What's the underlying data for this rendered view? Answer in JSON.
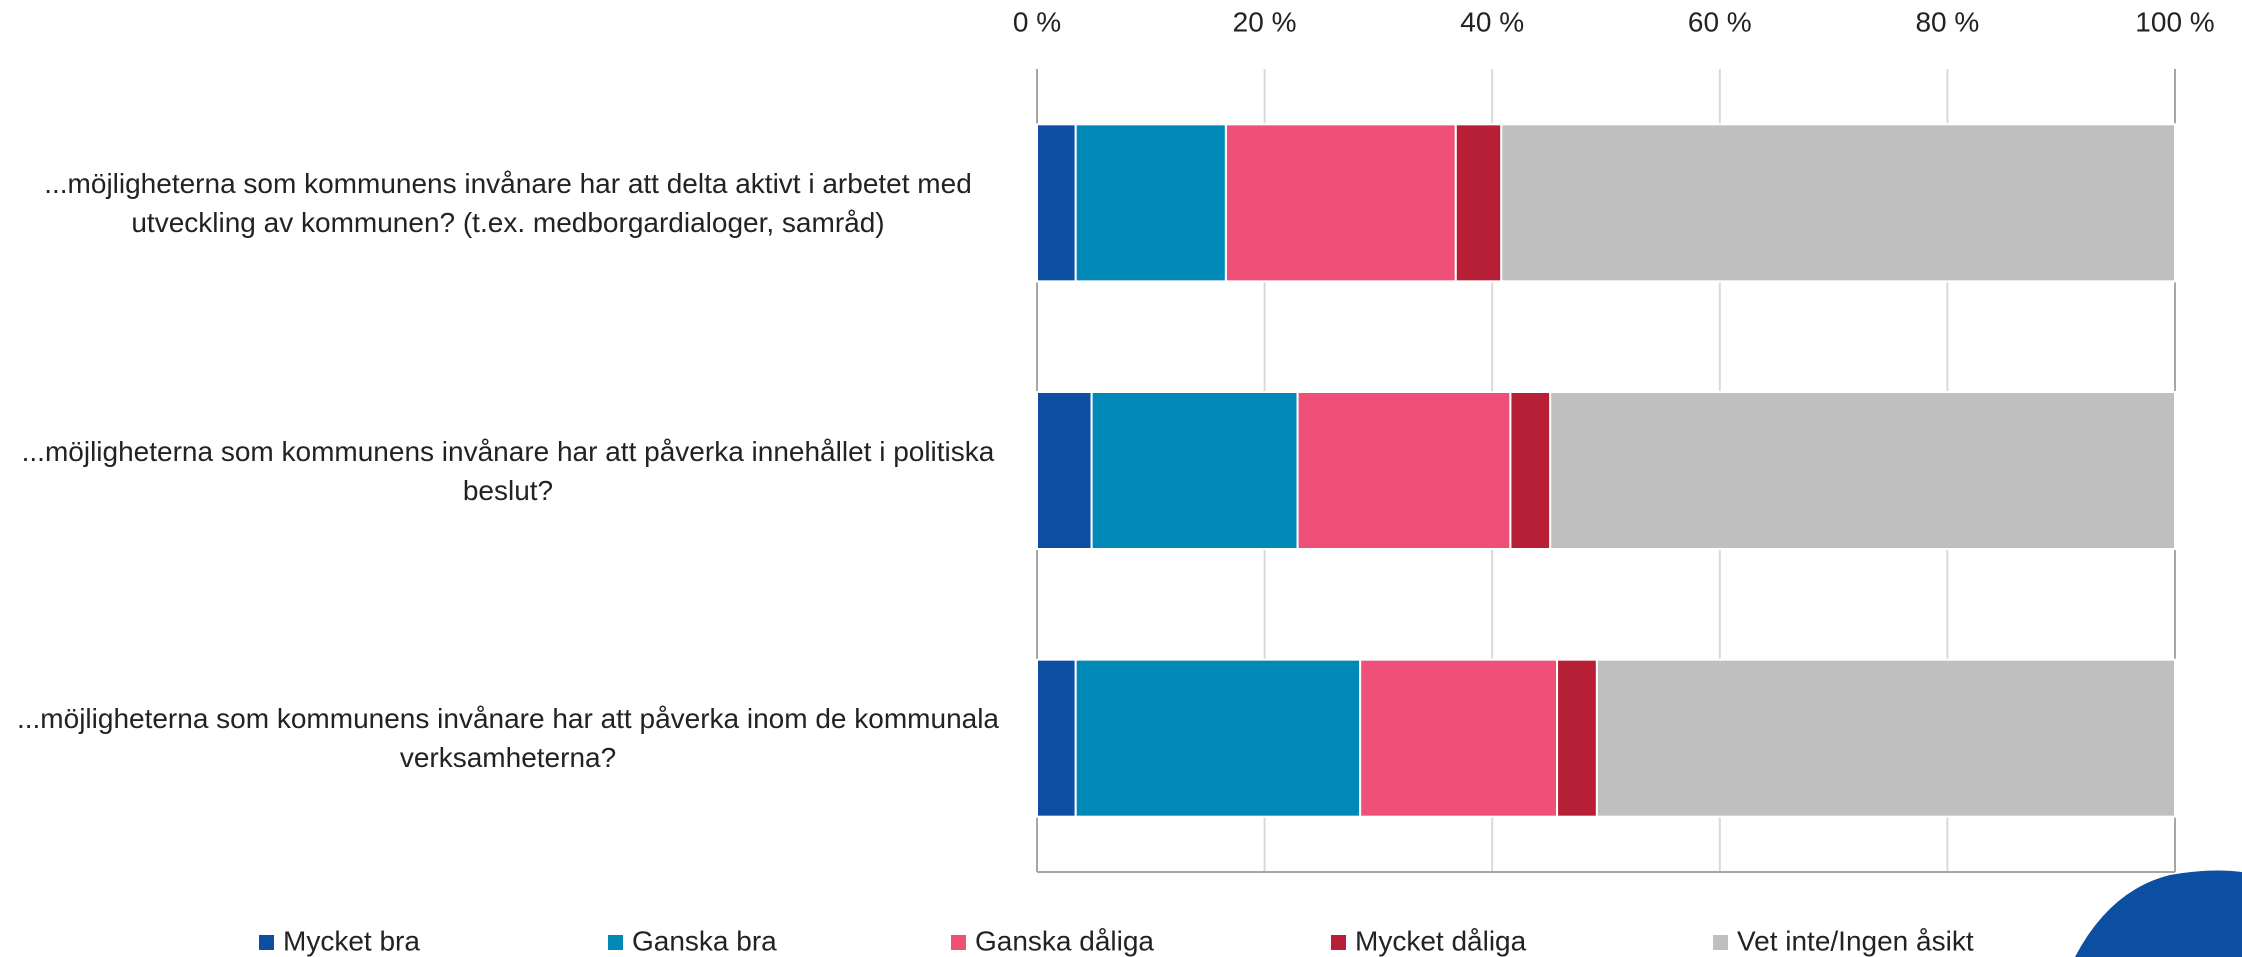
{
  "chart_data": {
    "type": "stacked-barh",
    "categories": [
      "...möjligheterna som kommunens invånare har att delta aktivt i arbetet med utveckling av kommunen? (t.ex. medborgardialoger, samråd)",
      "...möjligheterna som kommunens invånare har att påverka innehållet i politiska beslut?",
      "...möjligheterna som kommunens invånare har att påverka inom de kommunala verksamheterna?"
    ],
    "series": [
      {
        "name": "Mycket bra",
        "color": "#0b4ea2",
        "values": [
          3.4,
          4.8,
          3.4
        ]
      },
      {
        "name": "Ganska bra",
        "color": "#0088b7",
        "values": [
          13.2,
          18.1,
          25.0
        ]
      },
      {
        "name": "Ganska dåliga",
        "color": "#ef5078",
        "values": [
          20.2,
          18.7,
          17.3
        ]
      },
      {
        "name": "Mycket dåliga",
        "color": "#b71f36",
        "values": [
          4.0,
          3.5,
          3.5
        ]
      },
      {
        "name": "Vet inte/Ingen åsikt",
        "color": "#bfbfbf",
        "values": [
          59.2,
          54.9,
          50.8
        ]
      }
    ],
    "xlim": [
      0,
      100
    ],
    "xticks": [
      {
        "value": 0,
        "label": "0 %"
      },
      {
        "value": 20,
        "label": "20 %"
      },
      {
        "value": 40,
        "label": "40 %"
      },
      {
        "value": 60,
        "label": "60 %"
      },
      {
        "value": 80,
        "label": "80 %"
      },
      {
        "value": 100,
        "label": "100 %"
      }
    ],
    "grid": true,
    "legend": "bottom"
  }
}
